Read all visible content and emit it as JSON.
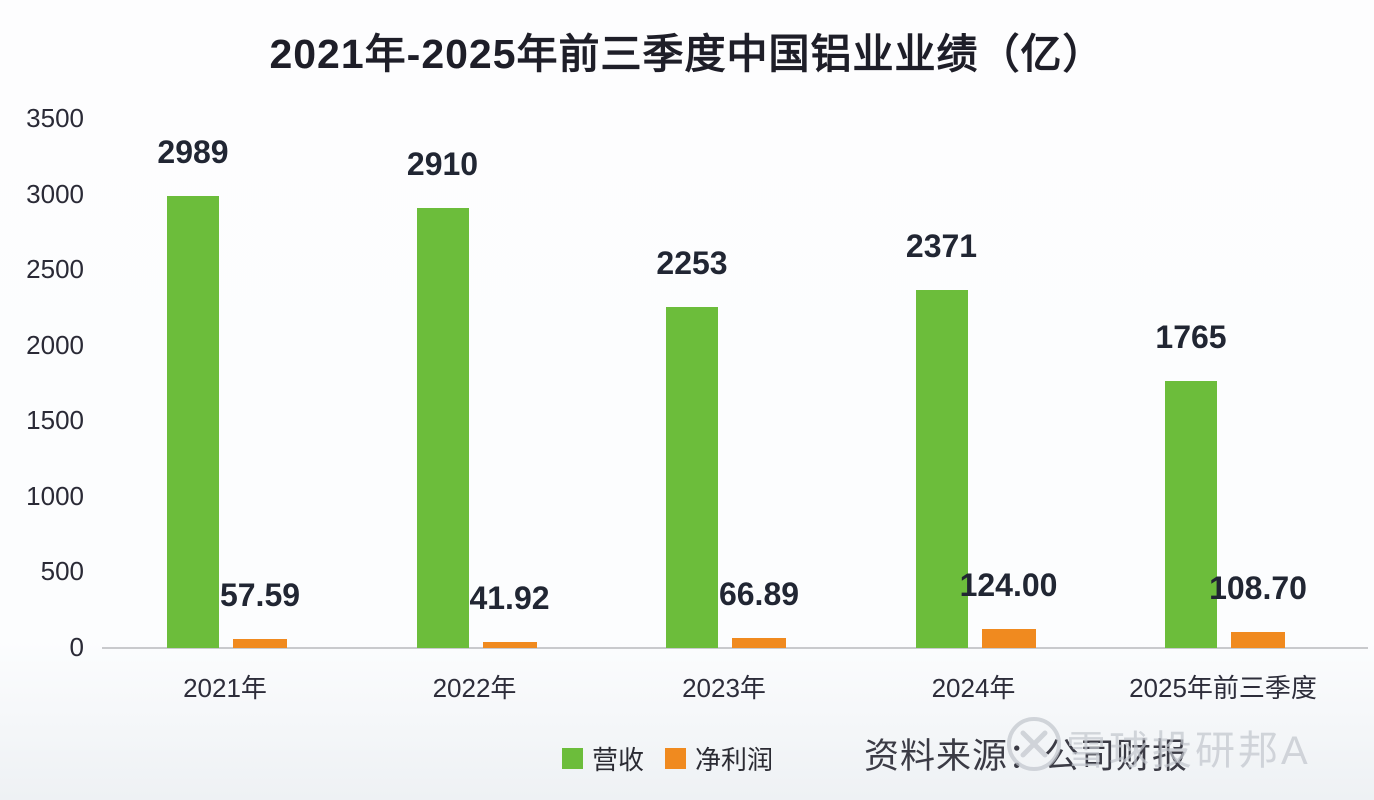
{
  "chart_data": {
    "type": "bar",
    "title": "2021年-2025年前三季度中国铝业业绩（亿）",
    "categories": [
      "2021年",
      "2022年",
      "2023年",
      "2024年",
      "2025年前三季度"
    ],
    "series": [
      {
        "name": "营收",
        "color": "#6CBD3B",
        "values": [
          2989,
          2910,
          2253,
          2371,
          1765
        ],
        "labels": [
          "2989",
          "2910",
          "2253",
          "2371",
          "1765"
        ]
      },
      {
        "name": "净利润",
        "color": "#F08A1F",
        "values": [
          57.59,
          41.92,
          66.89,
          124.0,
          108.7
        ],
        "labels": [
          "57.59",
          "41.92",
          "66.89",
          "124.00",
          "108.70"
        ]
      }
    ],
    "ylim": [
      0,
      3500
    ],
    "yticks": [
      0,
      500,
      1000,
      1500,
      2000,
      2500,
      3000,
      3500
    ],
    "grid": false,
    "legend_position": "bottom"
  },
  "footer": {
    "source_label": "资料来源：公司财报",
    "watermark_text": "雪球投研邦A",
    "watermark_icon": "circle-x-logo"
  },
  "colors": {
    "revenue_bar": "#6CBD3B",
    "profit_bar": "#F08A1F",
    "title_text": "#1e1e28",
    "value_label_text": "#212633",
    "axis_line": "#c9cacd",
    "watermark": "#c3c7ce"
  }
}
